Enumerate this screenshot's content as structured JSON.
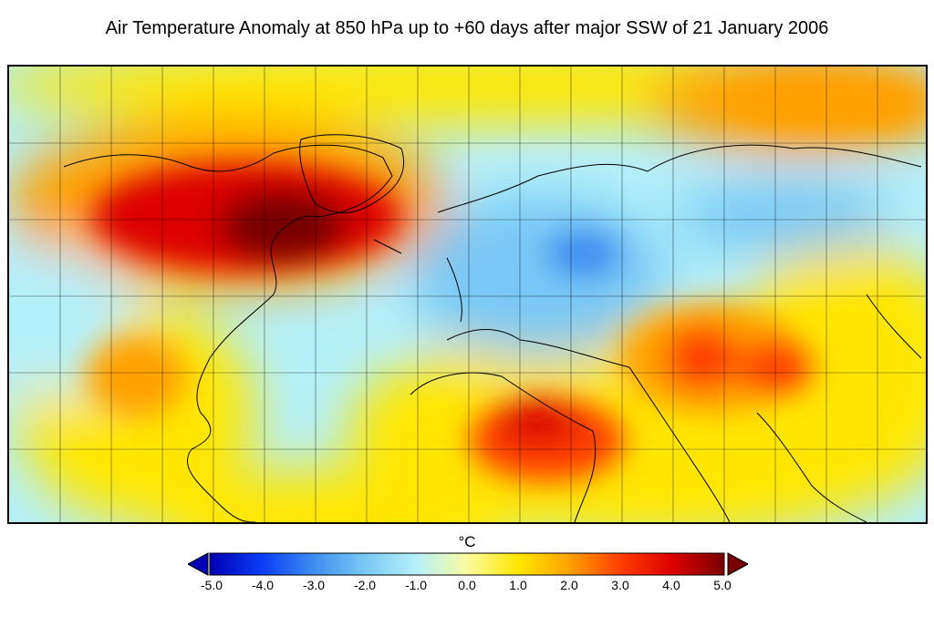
{
  "title": "Air Temperature Anomaly at 850 hPa up to +60 days after major SSW of 21 January 2006",
  "colorbar": {
    "unit": "°C",
    "ticks": [
      "-5.0",
      "-4.0",
      "-3.0",
      "-2.0",
      "-1.0",
      "0.0",
      "1.0",
      "2.0",
      "3.0",
      "4.0",
      "5.0"
    ],
    "range": [
      -5.0,
      5.0
    ],
    "colors": [
      "#0000b4",
      "#0a3cf5",
      "#3c8cf0",
      "#78c8f5",
      "#b4f0fa",
      "#fafaa0",
      "#ffe600",
      "#ffa000",
      "#ff3c00",
      "#dc0000",
      "#780000"
    ],
    "extend": "both"
  },
  "map": {
    "projection": "equirectangular",
    "region": "North America, Atlantic, Europe, Africa, Asia",
    "gridlines": true,
    "coastlines": true,
    "anomaly_regions": [
      {
        "name": "Canada-Greenland warm",
        "sign": "warm",
        "peak": 4.5
      },
      {
        "name": "Eastern Europe cold",
        "sign": "cold",
        "peak": -2.5
      },
      {
        "name": "Sahara warm",
        "sign": "warm",
        "peak": 3.5
      },
      {
        "name": "Middle East-Central Asia warm",
        "sign": "warm",
        "peak": 3.5
      },
      {
        "name": "Northern Siberia warm",
        "sign": "warm",
        "peak": 2.0
      },
      {
        "name": "Central Siberia cold",
        "sign": "cold",
        "peak": -1.5
      },
      {
        "name": "Gulf of Mexico warm",
        "sign": "warm",
        "peak": 2.0
      }
    ]
  }
}
